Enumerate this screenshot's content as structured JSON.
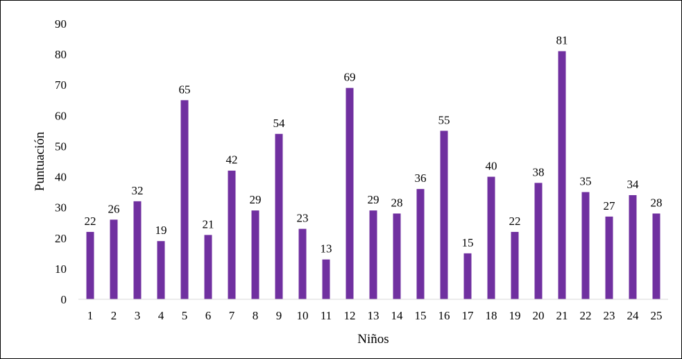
{
  "chart_data": {
    "type": "bar",
    "title": "",
    "xlabel": "Niños",
    "ylabel": "Puntuación",
    "ylim": [
      0,
      90
    ],
    "yticks": [
      0,
      10,
      20,
      30,
      40,
      50,
      60,
      70,
      80,
      90
    ],
    "grid": false,
    "legend": "none",
    "bar_color": "#7030A0",
    "categories": [
      "1",
      "2",
      "3",
      "4",
      "5",
      "6",
      "7",
      "8",
      "9",
      "10",
      "11",
      "12",
      "13",
      "14",
      "15",
      "16",
      "17",
      "18",
      "19",
      "20",
      "21",
      "22",
      "23",
      "24",
      "25"
    ],
    "values": [
      22,
      26,
      32,
      19,
      65,
      21,
      42,
      29,
      54,
      23,
      13,
      69,
      29,
      28,
      36,
      55,
      15,
      40,
      22,
      38,
      81,
      35,
      27,
      34,
      28
    ]
  }
}
